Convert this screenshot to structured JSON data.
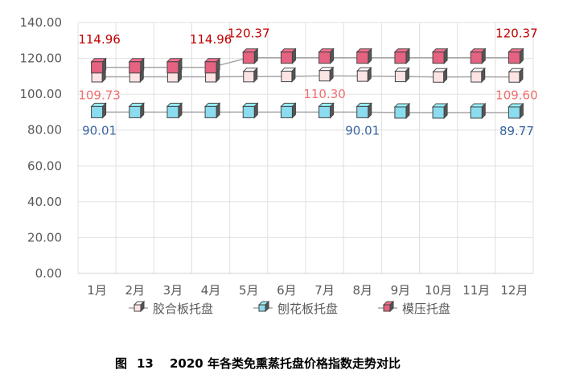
{
  "chart_data": {
    "type": "line",
    "title": "",
    "caption": {
      "prefix": "图",
      "number": "13",
      "text": "2020 年各类免熏蒸托盘价格指数走势对比"
    },
    "categories": [
      "1月",
      "2月",
      "3月",
      "4月",
      "5月",
      "6月",
      "7月",
      "8月",
      "9月",
      "10月",
      "11月",
      "12月"
    ],
    "ylim": [
      0,
      140
    ],
    "yticks": [
      "0.00",
      "20.00",
      "40.00",
      "60.00",
      "80.00",
      "100.00",
      "120.00",
      "140.00"
    ],
    "grid": true,
    "legend_position": "bottom",
    "series": [
      {
        "name": "胶合板托盘",
        "color": "#fce4e4",
        "values": [
          109.73,
          109.73,
          109.73,
          109.73,
          109.8,
          109.9,
          110.3,
          110.1,
          109.9,
          109.6,
          109.7,
          109.6
        ],
        "labels": {
          "0": "109.73",
          "6": "110.30",
          "11": "109.60"
        },
        "label_color": "#f07070"
      },
      {
        "name": "刨花板托盘",
        "color": "#8adcee",
        "values": [
          90.01,
          90.01,
          90.01,
          90.01,
          90.01,
          90.01,
          90.01,
          90.01,
          89.77,
          89.77,
          89.77,
          89.77
        ],
        "labels": {
          "0": "90.01",
          "7": "90.01",
          "11": "89.77"
        },
        "label_color": "#3a64a0"
      },
      {
        "name": "模压托盘",
        "color": "#e56380",
        "values": [
          114.96,
          114.96,
          114.96,
          114.96,
          120.37,
          120.37,
          120.37,
          120.37,
          120.37,
          120.37,
          120.37,
          120.37
        ],
        "labels": {
          "0": "114.96",
          "3": "114.96",
          "4": "120.37",
          "11": "120.37"
        },
        "label_color": "#c00000"
      }
    ]
  }
}
